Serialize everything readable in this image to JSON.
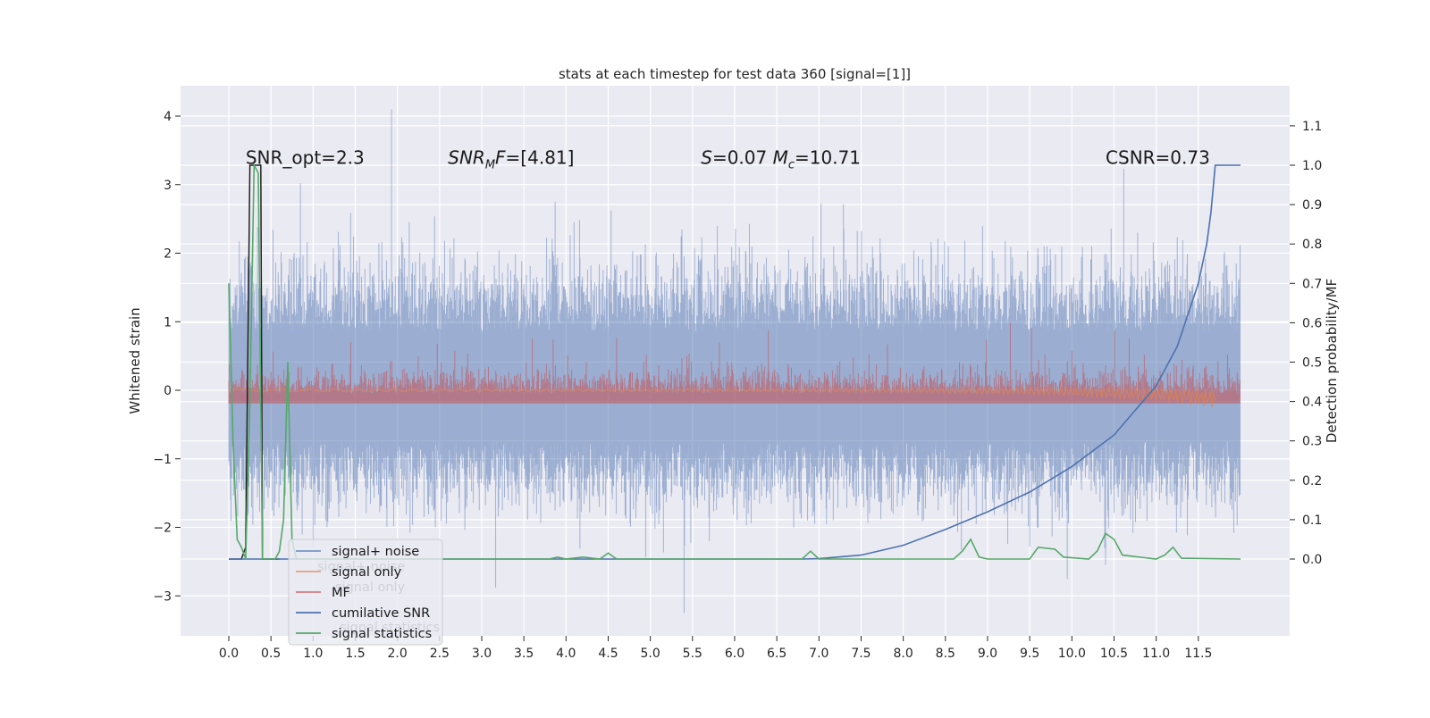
{
  "chart_data": {
    "type": "line",
    "title": "stats at each timestep for test data 360 [signal=[1]]",
    "xlabel": "",
    "ylabel_left": "Whitened strain",
    "ylabel_right": "Detection probability/MF",
    "xlim": [
      -0.6,
      12.6
    ],
    "ylim_left": [
      -3.6,
      4.4
    ],
    "ylim_right": [
      -0.19,
      1.19
    ],
    "x_ticks": [
      "0.0",
      "0.5",
      "1.0",
      "1.5",
      "2.0",
      "2.5",
      "3.0",
      "3.5",
      "4.0",
      "4.5",
      "5.0",
      "5.5",
      "6.0",
      "6.5",
      "7.0",
      "7.5",
      "8.0",
      "8.5",
      "9.0",
      "9.5",
      "10.0",
      "10.5",
      "11.0",
      "11.5"
    ],
    "y_ticks_left": [
      "4",
      "3",
      "2",
      "1",
      "0",
      "−1",
      "−2",
      "−3"
    ],
    "y_ticks_right": [
      "1.1",
      "1.0",
      "0.9",
      "0.8",
      "0.7",
      "0.6",
      "0.5",
      "0.4",
      "0.3",
      "0.2",
      "0.1",
      "0.0"
    ],
    "grid": true,
    "legend_position": "lower-left",
    "annotations": [
      {
        "text": "SNR_opt=2.3",
        "x": 0.2,
        "y": 3.3
      },
      {
        "html": "SNR_MF=[4.81]",
        "x": 2.6,
        "y": 3.3
      },
      {
        "html": "S=0.07   M_c=10.71",
        "x": 5.6,
        "y": 3.3
      },
      {
        "text": "CSNR=0.73",
        "x": 10.4,
        "y": 3.3
      }
    ],
    "series": [
      {
        "name": "signal+ noise",
        "color": "#4c72b0",
        "axis": "left",
        "x_range": [
          0,
          12
        ],
        "description_values": {
          "envelope_pos": 1.6,
          "envelope_neg": -1.5,
          "peak": 4.1,
          "min": -3.25
        }
      },
      {
        "name": "signal only",
        "color": "#dd8452",
        "axis": "left",
        "x_range": [
          0,
          11.7
        ],
        "end_dip": -0.25
      },
      {
        "name": "MF",
        "color": "#c44e52",
        "axis": "right",
        "x_range": [
          0,
          12
        ],
        "base": 0.4,
        "band_top": 0.5,
        "peak": 0.6
      },
      {
        "name": "cumilative SNR",
        "color": "#4c72b0",
        "axis": "right",
        "points": [
          [
            0,
            0
          ],
          [
            6.8,
            0
          ],
          [
            7.0,
            0.001
          ],
          [
            7.5,
            0.01
          ],
          [
            8.0,
            0.035
          ],
          [
            8.5,
            0.075
          ],
          [
            9.0,
            0.12
          ],
          [
            9.5,
            0.17
          ],
          [
            10.0,
            0.235
          ],
          [
            10.5,
            0.315
          ],
          [
            11.0,
            0.44
          ],
          [
            11.25,
            0.54
          ],
          [
            11.5,
            0.7
          ],
          [
            11.6,
            0.8
          ],
          [
            11.65,
            0.88
          ],
          [
            11.7,
            1.0
          ],
          [
            12.0,
            1.0
          ]
        ]
      },
      {
        "name": "signal statistics",
        "color": "#55a868",
        "axis": "right",
        "points": [
          [
            0,
            0.7
          ],
          [
            0.05,
            0.3
          ],
          [
            0.1,
            0.05
          ],
          [
            0.15,
            0.03
          ],
          [
            0.2,
            0.0
          ],
          [
            0.25,
            0.4
          ],
          [
            0.3,
            1.0
          ],
          [
            0.35,
            0.98
          ],
          [
            0.4,
            0.0
          ],
          [
            0.45,
            0.0
          ],
          [
            0.55,
            0.0
          ],
          [
            0.6,
            0.02
          ],
          [
            0.65,
            0.1
          ],
          [
            0.7,
            0.5
          ],
          [
            0.75,
            0.05
          ],
          [
            0.8,
            0.0
          ],
          [
            3.8,
            0.0
          ],
          [
            3.9,
            0.005
          ],
          [
            4.0,
            0.0
          ],
          [
            4.2,
            0.005
          ],
          [
            4.4,
            0.0
          ],
          [
            4.5,
            0.015
          ],
          [
            4.6,
            0.0
          ],
          [
            6.8,
            0.0
          ],
          [
            6.9,
            0.02
          ],
          [
            7.0,
            0.0
          ],
          [
            8.6,
            0.0
          ],
          [
            8.7,
            0.02
          ],
          [
            8.8,
            0.05
          ],
          [
            8.9,
            0.005
          ],
          [
            9.0,
            0.0
          ],
          [
            9.5,
            0.0
          ],
          [
            9.6,
            0.03
          ],
          [
            9.8,
            0.025
          ],
          [
            9.9,
            0.005
          ],
          [
            10.2,
            0.0
          ],
          [
            10.3,
            0.02
          ],
          [
            10.4,
            0.065
          ],
          [
            10.5,
            0.05
          ],
          [
            10.6,
            0.01
          ],
          [
            11.0,
            0.0
          ],
          [
            11.1,
            0.01
          ],
          [
            11.2,
            0.03
          ],
          [
            11.3,
            0.002
          ],
          [
            12.0,
            0.0
          ]
        ]
      },
      {
        "name": "",
        "color": "#222222",
        "axis": "right",
        "points": [
          [
            0,
            0
          ],
          [
            0.05,
            0.0
          ],
          [
            0.1,
            0.0
          ],
          [
            0.15,
            0.0
          ],
          [
            0.2,
            0.03
          ],
          [
            0.25,
            1.0
          ],
          [
            0.38,
            1.0
          ],
          [
            0.4,
            0.0
          ],
          [
            0.6,
            0.0
          ]
        ]
      }
    ]
  },
  "legend": {
    "items": [
      {
        "label": "signal+ noise",
        "color": "#4c72b0"
      },
      {
        "label": "signal only",
        "color": "#dd8452"
      },
      {
        "label": "MF",
        "color": "#c44e52"
      },
      {
        "label": "cumilative SNR",
        "color": "#4c72b0"
      },
      {
        "label": "signal statistics",
        "color": "#55a868"
      }
    ],
    "ghost_items": [
      {
        "label": "signal+ noise"
      },
      {
        "label": "signal only"
      },
      {
        "label": "signal statistics"
      }
    ]
  },
  "colors": {
    "background": "#eaeaf2",
    "grid": "#ffffff"
  }
}
